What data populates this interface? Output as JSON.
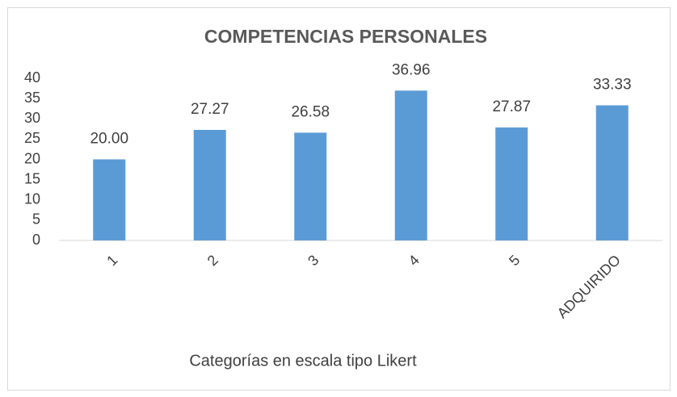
{
  "chart_data": {
    "type": "bar",
    "title": "COMPETENCIAS PERSONALES",
    "x_label": "Categorías en escala tipo Likert",
    "categories": [
      "1",
      "2",
      "3",
      "4",
      "5",
      "ADQUIRIDO"
    ],
    "values": [
      20,
      27.27,
      26.58,
      36.96,
      27.87,
      33.33
    ],
    "value_labels": [
      "20.00",
      "27.27",
      "26.58",
      "36.96",
      "27.87",
      "33.33"
    ],
    "color": "#5b9bd5",
    "ylim": [
      0,
      40
    ],
    "yticks": [
      0,
      5,
      10,
      15,
      20,
      25,
      30,
      35,
      40
    ],
    "grid": false
  }
}
